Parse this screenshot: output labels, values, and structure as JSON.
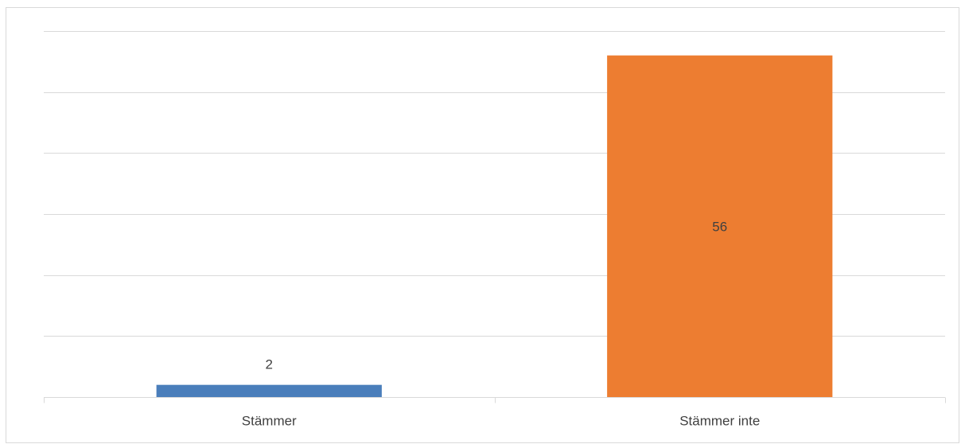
{
  "chart_data": {
    "type": "bar",
    "title": "",
    "xlabel": "",
    "ylabel": "",
    "categories": [
      "Stämmer",
      "Stämmer inte"
    ],
    "values": [
      2,
      56
    ],
    "data_labels": [
      "2",
      "56"
    ],
    "colors": [
      "#4a7ebb",
      "#ed7d31"
    ],
    "ylim": [
      0,
      60
    ],
    "grid": true,
    "y_tick_labels_visible": false,
    "legend": "none"
  }
}
